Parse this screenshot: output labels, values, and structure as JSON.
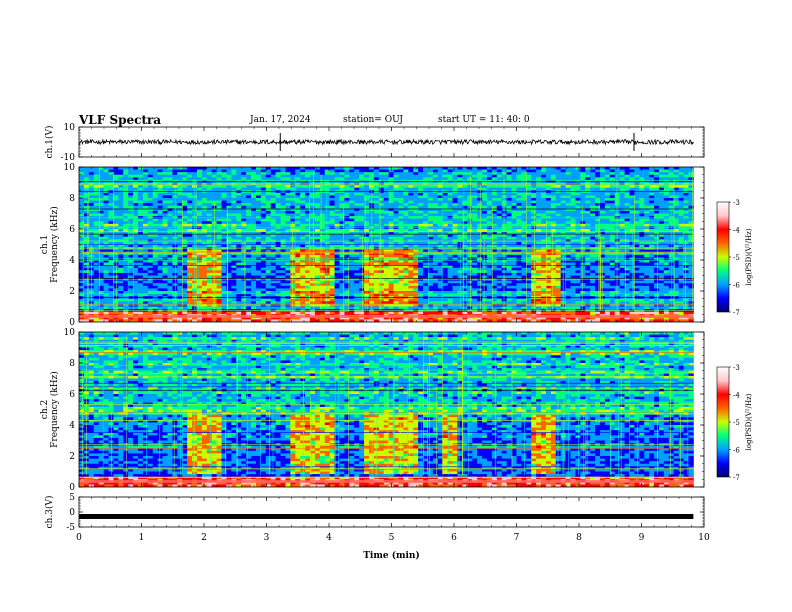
{
  "header": {
    "title": "VLF Spectra",
    "date": "Jan. 17, 2024",
    "station": "station= OUJ",
    "start": "start  UT =  11: 40: 0"
  },
  "chart_data": {
    "type": "heatmap",
    "title": "VLF Spectra",
    "xlabel": "Time  (min)",
    "xlim": [
      0,
      10
    ],
    "x_ticks": [
      "0",
      "1",
      "2",
      "3",
      "4",
      "5",
      "6",
      "7",
      "8",
      "9",
      "10"
    ],
    "data_end_min": 9.83,
    "grid": false,
    "panels": [
      {
        "name": "ch.1(V)",
        "kind": "waveform",
        "ylabel": "ch.1(V)",
        "ylim": [
          -10,
          10
        ],
        "y_ticks": [
          "10",
          "-10"
        ],
        "level": 0,
        "amplitude": 1.5,
        "spikes_min": [
          3.22,
          8.88
        ]
      },
      {
        "name": "ch.1 spectrogram",
        "kind": "spectrogram",
        "ylabel": "ch.1\nFrequency (kHz)",
        "ylim": [
          0,
          10
        ],
        "y_ticks": [
          "0",
          "2",
          "4",
          "6",
          "8",
          "10"
        ],
        "bright_intervals_min": [
          [
            1.7,
            2.25
          ],
          [
            3.35,
            4.05
          ],
          [
            4.55,
            5.4
          ],
          [
            7.25,
            7.7
          ]
        ],
        "band_khz": [
          4.0,
          4.7
        ]
      },
      {
        "name": "ch.2 spectrogram",
        "kind": "spectrogram",
        "ylabel": "ch.2\nFrequency (kHz)",
        "ylim": [
          0,
          10
        ],
        "y_ticks": [
          "0",
          "2",
          "4",
          "6",
          "8",
          "10"
        ],
        "bright_intervals_min": [
          [
            1.7,
            2.25
          ],
          [
            3.35,
            4.05
          ],
          [
            4.55,
            5.4
          ],
          [
            5.8,
            6.05
          ],
          [
            7.2,
            7.6
          ]
        ],
        "band_khz": [
          3.8,
          4.6
        ]
      },
      {
        "name": "ch.3(V)",
        "kind": "waveform",
        "ylabel": "ch.3(V)",
        "ylim": [
          -5,
          5
        ],
        "y_ticks": [
          "5",
          "0",
          "-5"
        ],
        "level": -1.5,
        "amplitude": 0.3
      }
    ],
    "colorbar": {
      "label": "log(PSD)(V²/Hz)",
      "range": [
        -7,
        -3
      ],
      "ticks": [
        "-3",
        "-4",
        "-5",
        "-6",
        "-7"
      ],
      "colormap": [
        "#00006e",
        "#0000ff",
        "#00a0ff",
        "#00ff80",
        "#c8ff00",
        "#ff6400",
        "#ff0000",
        "#ffc8c8",
        "#ffffff"
      ]
    }
  }
}
